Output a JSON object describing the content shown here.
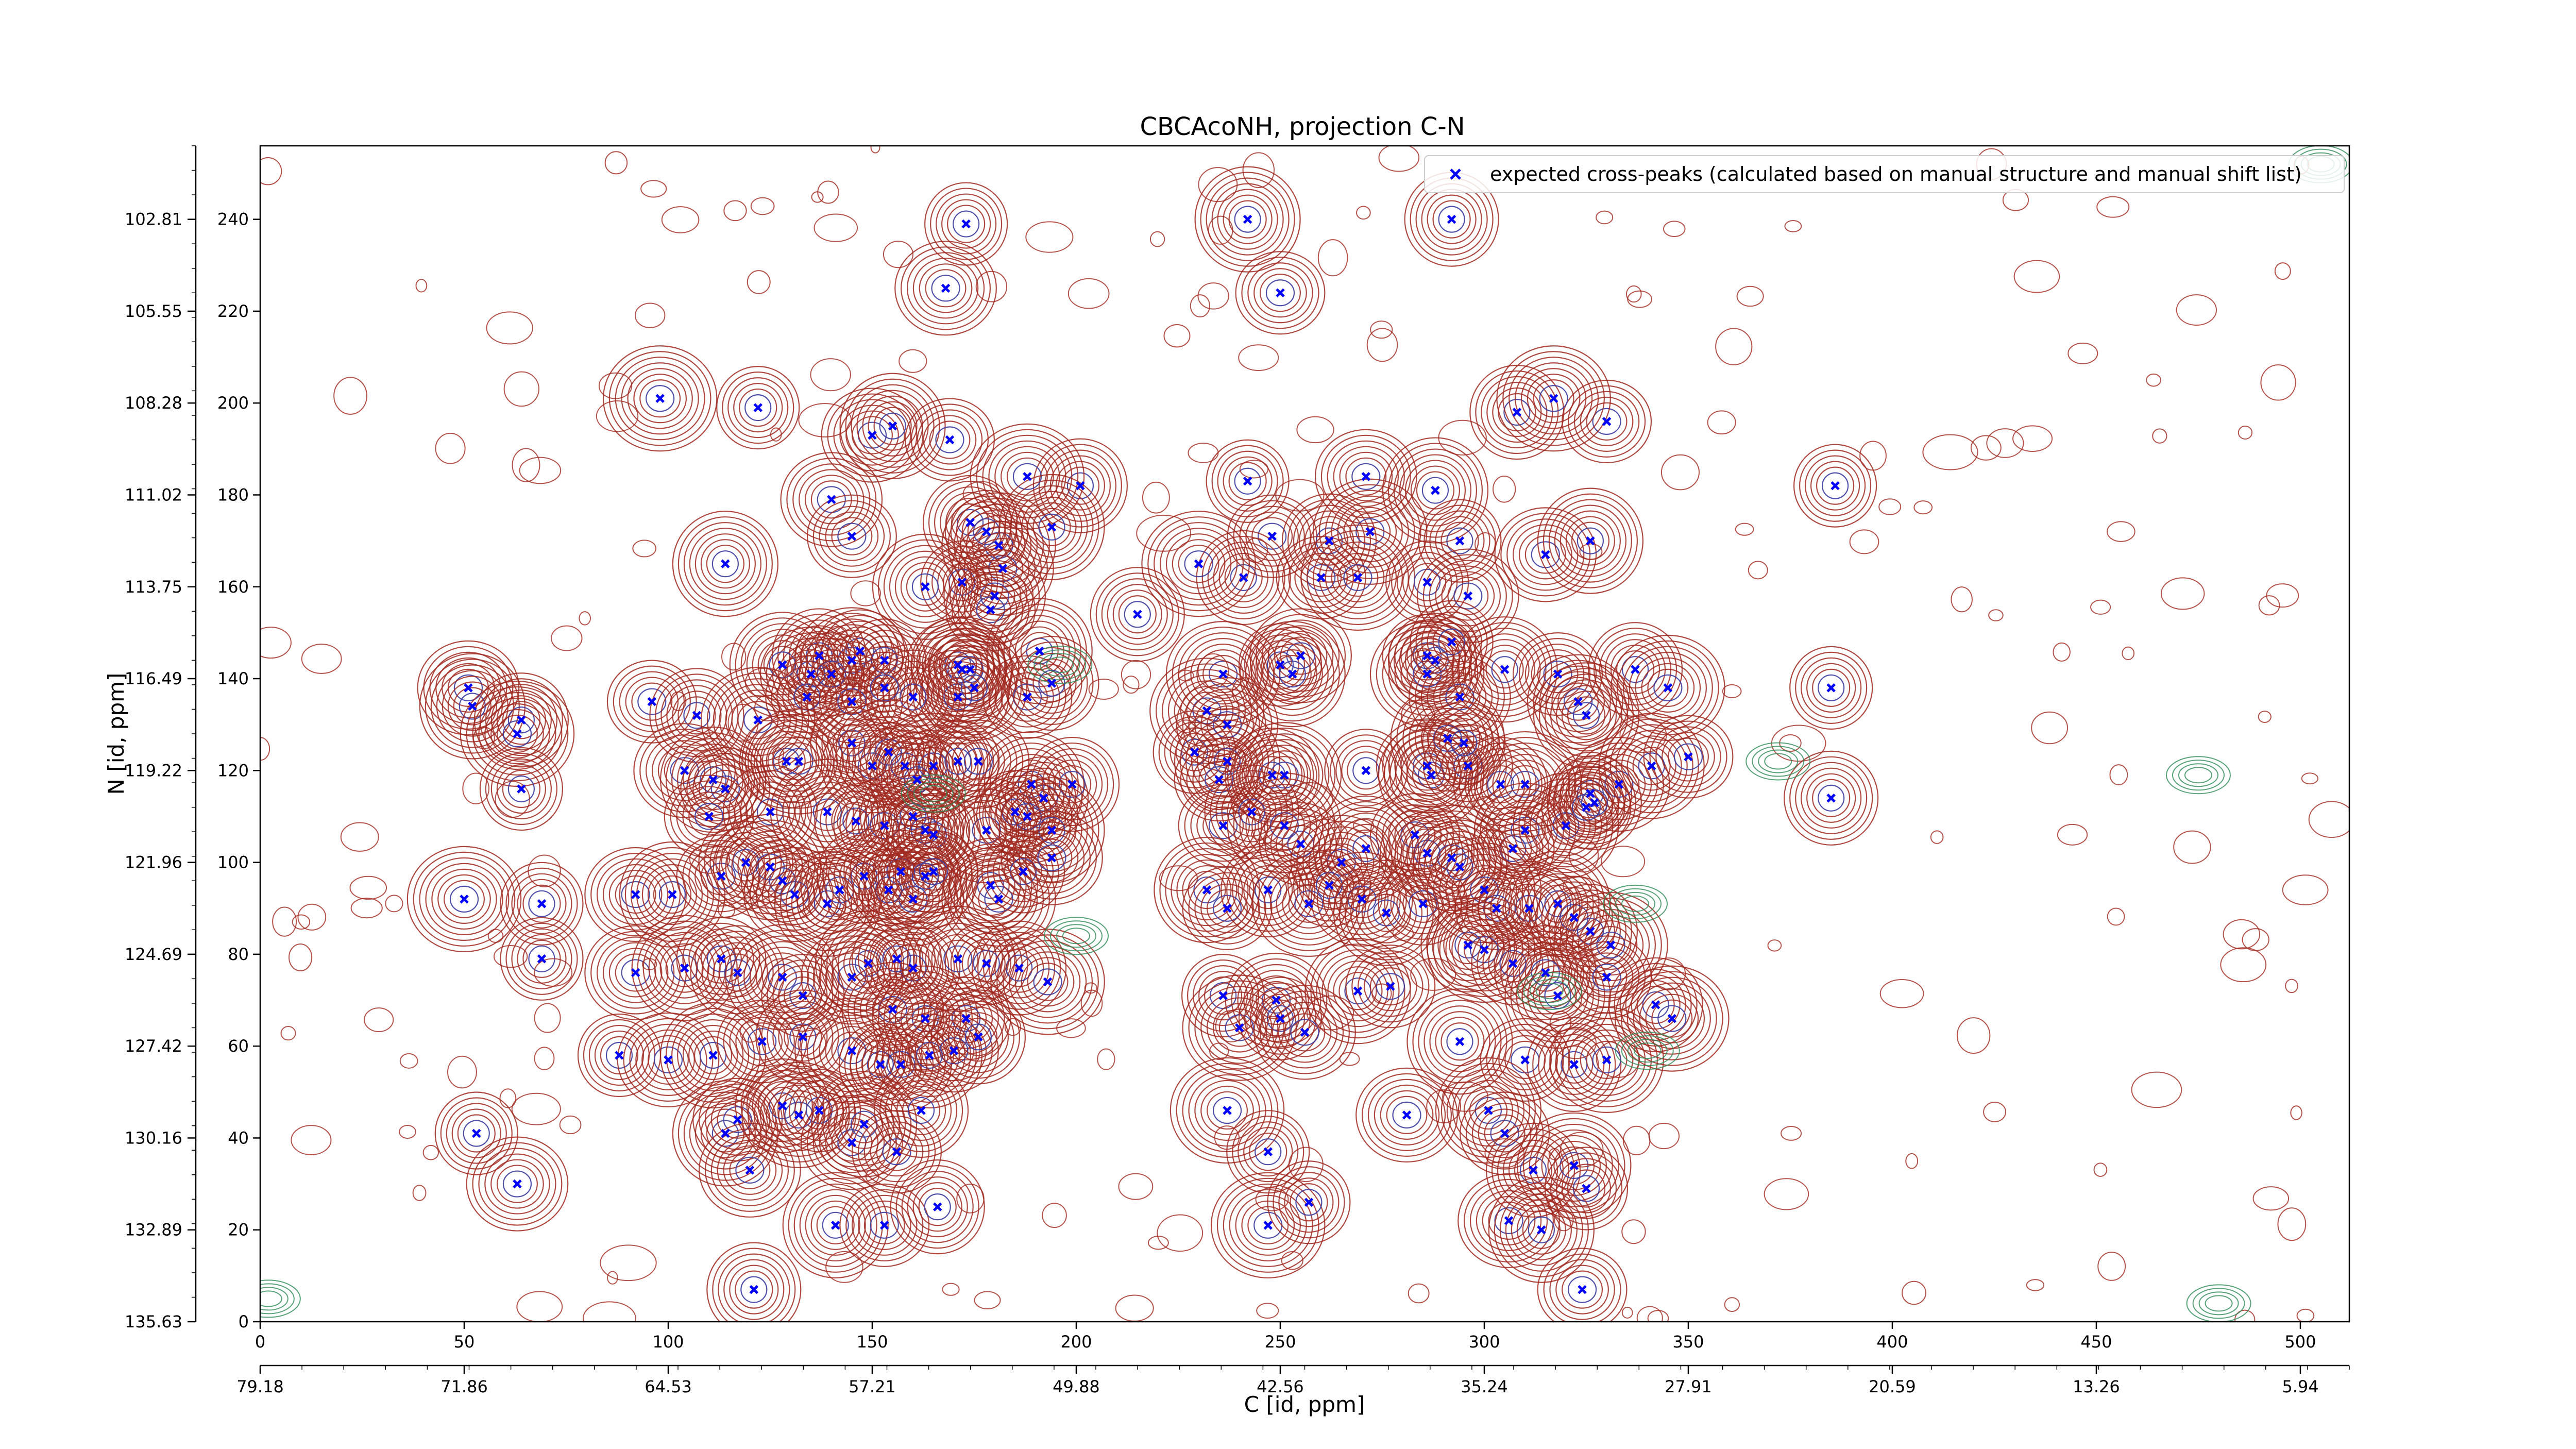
{
  "chart_data": {
    "type": "scatter",
    "title": "CBCAcoNH, projection C-N",
    "xlabel": "C [id, ppm]",
    "ylabel": "N [id, ppm]",
    "xlim": [
      0,
      512
    ],
    "ylim": [
      0,
      256
    ],
    "x_ticks": [
      "0",
      "50",
      "100",
      "150",
      "200",
      "250",
      "300",
      "350",
      "400",
      "450",
      "500"
    ],
    "x_tick_values": [
      0,
      50,
      100,
      150,
      200,
      250,
      300,
      350,
      400,
      450,
      500
    ],
    "y_ticks": [
      "0",
      "20",
      "40",
      "60",
      "80",
      "100",
      "120",
      "140",
      "160",
      "180",
      "200",
      "220",
      "240"
    ],
    "y_tick_values": [
      0,
      20,
      40,
      60,
      80,
      100,
      120,
      140,
      160,
      180,
      200,
      220,
      240
    ],
    "secondary_x_ticks": [
      "79.18",
      "71.86",
      "64.53",
      "57.21",
      "49.88",
      "42.56",
      "35.24",
      "27.91",
      "20.59",
      "13.26",
      "5.94"
    ],
    "secondary_y_ticks": [
      "135.63",
      "132.89",
      "130.16",
      "127.42",
      "124.69",
      "121.96",
      "119.22",
      "116.49",
      "113.75",
      "111.02",
      "108.28",
      "105.55",
      "102.81"
    ],
    "legend_placement": "upper-right",
    "colors": {
      "marker": "#0000ff",
      "positive_contour": "#a0281e",
      "negative_contour": "#2e8b57",
      "axis": "#000000"
    },
    "series": [
      {
        "name": "expected cross-peaks (calculated based on manual structure and manual shift list)",
        "marker": "x",
        "points": [
          [
            173,
            239
          ],
          [
            168,
            225
          ],
          [
            242,
            240
          ],
          [
            250,
            224
          ],
          [
            292,
            240
          ],
          [
            98,
            201
          ],
          [
            122,
            199
          ],
          [
            150,
            193
          ],
          [
            155,
            195
          ],
          [
            169,
            192
          ],
          [
            201,
            182
          ],
          [
            188,
            184
          ],
          [
            242,
            183
          ],
          [
            271,
            184
          ],
          [
            288,
            181
          ],
          [
            330,
            196
          ],
          [
            308,
            198
          ],
          [
            317,
            201
          ],
          [
            386,
            182
          ],
          [
            140,
            179
          ],
          [
            114,
            165
          ],
          [
            145,
            171
          ],
          [
            174,
            174
          ],
          [
            181,
            169
          ],
          [
            178,
            172
          ],
          [
            182,
            164
          ],
          [
            194,
            173
          ],
          [
            248,
            171
          ],
          [
            262,
            170
          ],
          [
            272,
            172
          ],
          [
            294,
            170
          ],
          [
            315,
            167
          ],
          [
            326,
            170
          ],
          [
            260,
            162
          ],
          [
            241,
            162
          ],
          [
            230,
            165
          ],
          [
            172,
            161
          ],
          [
            180,
            158
          ],
          [
            163,
            160
          ],
          [
            179,
            155
          ],
          [
            215,
            154
          ],
          [
            269,
            162
          ],
          [
            286,
            161
          ],
          [
            296,
            158
          ],
          [
            191,
            146
          ],
          [
            147,
            146
          ],
          [
            137,
            145
          ],
          [
            145,
            144
          ],
          [
            153,
            144
          ],
          [
            135,
            141
          ],
          [
            128,
            143
          ],
          [
            140,
            141
          ],
          [
            171,
            143
          ],
          [
            172,
            142
          ],
          [
            174,
            142
          ],
          [
            171,
            136
          ],
          [
            175,
            138
          ],
          [
            188,
            136
          ],
          [
            194,
            139
          ],
          [
            236,
            141
          ],
          [
            250,
            143
          ],
          [
            255,
            145
          ],
          [
            253,
            141
          ],
          [
            286,
            145
          ],
          [
            288,
            144
          ],
          [
            286,
            141
          ],
          [
            292,
            148
          ],
          [
            294,
            136
          ],
          [
            305,
            142
          ],
          [
            318,
            141
          ],
          [
            337,
            142
          ],
          [
            345,
            138
          ],
          [
            385,
            138
          ],
          [
            51,
            138
          ],
          [
            52,
            134
          ],
          [
            96,
            135
          ],
          [
            107,
            132
          ],
          [
            122,
            131
          ],
          [
            134,
            136
          ],
          [
            145,
            135
          ],
          [
            160,
            136
          ],
          [
            153,
            138
          ],
          [
            64,
            131
          ],
          [
            63,
            128
          ],
          [
            64,
            116
          ],
          [
            104,
            120
          ],
          [
            111,
            118
          ],
          [
            114,
            116
          ],
          [
            129,
            122
          ],
          [
            132,
            122
          ],
          [
            145,
            126
          ],
          [
            150,
            121
          ],
          [
            154,
            124
          ],
          [
            158,
            121
          ],
          [
            161,
            118
          ],
          [
            165,
            121
          ],
          [
            171,
            122
          ],
          [
            176,
            122
          ],
          [
            189,
            117
          ],
          [
            192,
            114
          ],
          [
            199,
            117
          ],
          [
            232,
            133
          ],
          [
            229,
            124
          ],
          [
            237,
            130
          ],
          [
            237,
            122
          ],
          [
            235,
            118
          ],
          [
            248,
            119
          ],
          [
            251,
            119
          ],
          [
            271,
            120
          ],
          [
            286,
            121
          ],
          [
            287,
            119
          ],
          [
            296,
            121
          ],
          [
            304,
            117
          ],
          [
            310,
            117
          ],
          [
            326,
            115
          ],
          [
            333,
            117
          ],
          [
            341,
            121
          ],
          [
            350,
            123
          ],
          [
            385,
            114
          ],
          [
            291,
            127
          ],
          [
            295,
            126
          ],
          [
            323,
            135
          ],
          [
            325,
            132
          ],
          [
            110,
            110
          ],
          [
            125,
            111
          ],
          [
            139,
            111
          ],
          [
            146,
            109
          ],
          [
            153,
            108
          ],
          [
            160,
            110
          ],
          [
            163,
            107
          ],
          [
            165,
            106
          ],
          [
            178,
            107
          ],
          [
            185,
            111
          ],
          [
            188,
            110
          ],
          [
            194,
            107
          ],
          [
            236,
            108
          ],
          [
            243,
            111
          ],
          [
            251,
            108
          ],
          [
            255,
            104
          ],
          [
            265,
            100
          ],
          [
            271,
            103
          ],
          [
            283,
            106
          ],
          [
            286,
            102
          ],
          [
            292,
            101
          ],
          [
            307,
            103
          ],
          [
            310,
            107
          ],
          [
            320,
            108
          ],
          [
            325,
            112
          ],
          [
            327,
            113
          ],
          [
            50,
            92
          ],
          [
            69,
            91
          ],
          [
            92,
            93
          ],
          [
            101,
            93
          ],
          [
            113,
            97
          ],
          [
            119,
            100
          ],
          [
            125,
            99
          ],
          [
            128,
            96
          ],
          [
            131,
            93
          ],
          [
            139,
            91
          ],
          [
            142,
            94
          ],
          [
            148,
            97
          ],
          [
            157,
            98
          ],
          [
            154,
            94
          ],
          [
            160,
            92
          ],
          [
            163,
            97
          ],
          [
            165,
            98
          ],
          [
            179,
            95
          ],
          [
            181,
            92
          ],
          [
            187,
            98
          ],
          [
            194,
            101
          ],
          [
            232,
            94
          ],
          [
            237,
            90
          ],
          [
            247,
            94
          ],
          [
            257,
            91
          ],
          [
            262,
            95
          ],
          [
            270,
            92
          ],
          [
            276,
            89
          ],
          [
            285,
            91
          ],
          [
            294,
            99
          ],
          [
            300,
            94
          ],
          [
            303,
            90
          ],
          [
            311,
            90
          ],
          [
            318,
            91
          ],
          [
            322,
            88
          ],
          [
            326,
            85
          ],
          [
            331,
            82
          ],
          [
            69,
            79
          ],
          [
            92,
            76
          ],
          [
            104,
            77
          ],
          [
            113,
            79
          ],
          [
            117,
            76
          ],
          [
            128,
            75
          ],
          [
            133,
            71
          ],
          [
            145,
            75
          ],
          [
            149,
            78
          ],
          [
            156,
            79
          ],
          [
            160,
            77
          ],
          [
            171,
            79
          ],
          [
            178,
            78
          ],
          [
            155,
            68
          ],
          [
            163,
            66
          ],
          [
            173,
            66
          ],
          [
            186,
            77
          ],
          [
            193,
            74
          ],
          [
            236,
            71
          ],
          [
            249,
            70
          ],
          [
            269,
            72
          ],
          [
            277,
            73
          ],
          [
            296,
            82
          ],
          [
            300,
            81
          ],
          [
            307,
            78
          ],
          [
            315,
            76
          ],
          [
            318,
            71
          ],
          [
            330,
            75
          ],
          [
            342,
            69
          ],
          [
            346,
            66
          ],
          [
            88,
            58
          ],
          [
            100,
            57
          ],
          [
            111,
            58
          ],
          [
            123,
            61
          ],
          [
            133,
            62
          ],
          [
            145,
            59
          ],
          [
            152,
            56
          ],
          [
            157,
            56
          ],
          [
            164,
            58
          ],
          [
            170,
            59
          ],
          [
            176,
            62
          ],
          [
            240,
            64
          ],
          [
            250,
            66
          ],
          [
            256,
            63
          ],
          [
            294,
            61
          ],
          [
            310,
            57
          ],
          [
            322,
            56
          ],
          [
            330,
            57
          ],
          [
            53,
            41
          ],
          [
            63,
            30
          ],
          [
            114,
            41
          ],
          [
            117,
            44
          ],
          [
            128,
            47
          ],
          [
            132,
            45
          ],
          [
            137,
            46
          ],
          [
            145,
            39
          ],
          [
            148,
            43
          ],
          [
            156,
            37
          ],
          [
            162,
            46
          ],
          [
            237,
            46
          ],
          [
            247,
            37
          ],
          [
            281,
            45
          ],
          [
            301,
            46
          ],
          [
            305,
            41
          ],
          [
            312,
            33
          ],
          [
            322,
            34
          ],
          [
            325,
            29
          ],
          [
            120,
            33
          ],
          [
            141,
            21
          ],
          [
            153,
            21
          ],
          [
            166,
            25
          ],
          [
            247,
            21
          ],
          [
            257,
            26
          ],
          [
            306,
            22
          ],
          [
            314,
            20
          ],
          [
            324,
            7
          ],
          [
            121,
            7
          ]
        ]
      }
    ]
  }
}
